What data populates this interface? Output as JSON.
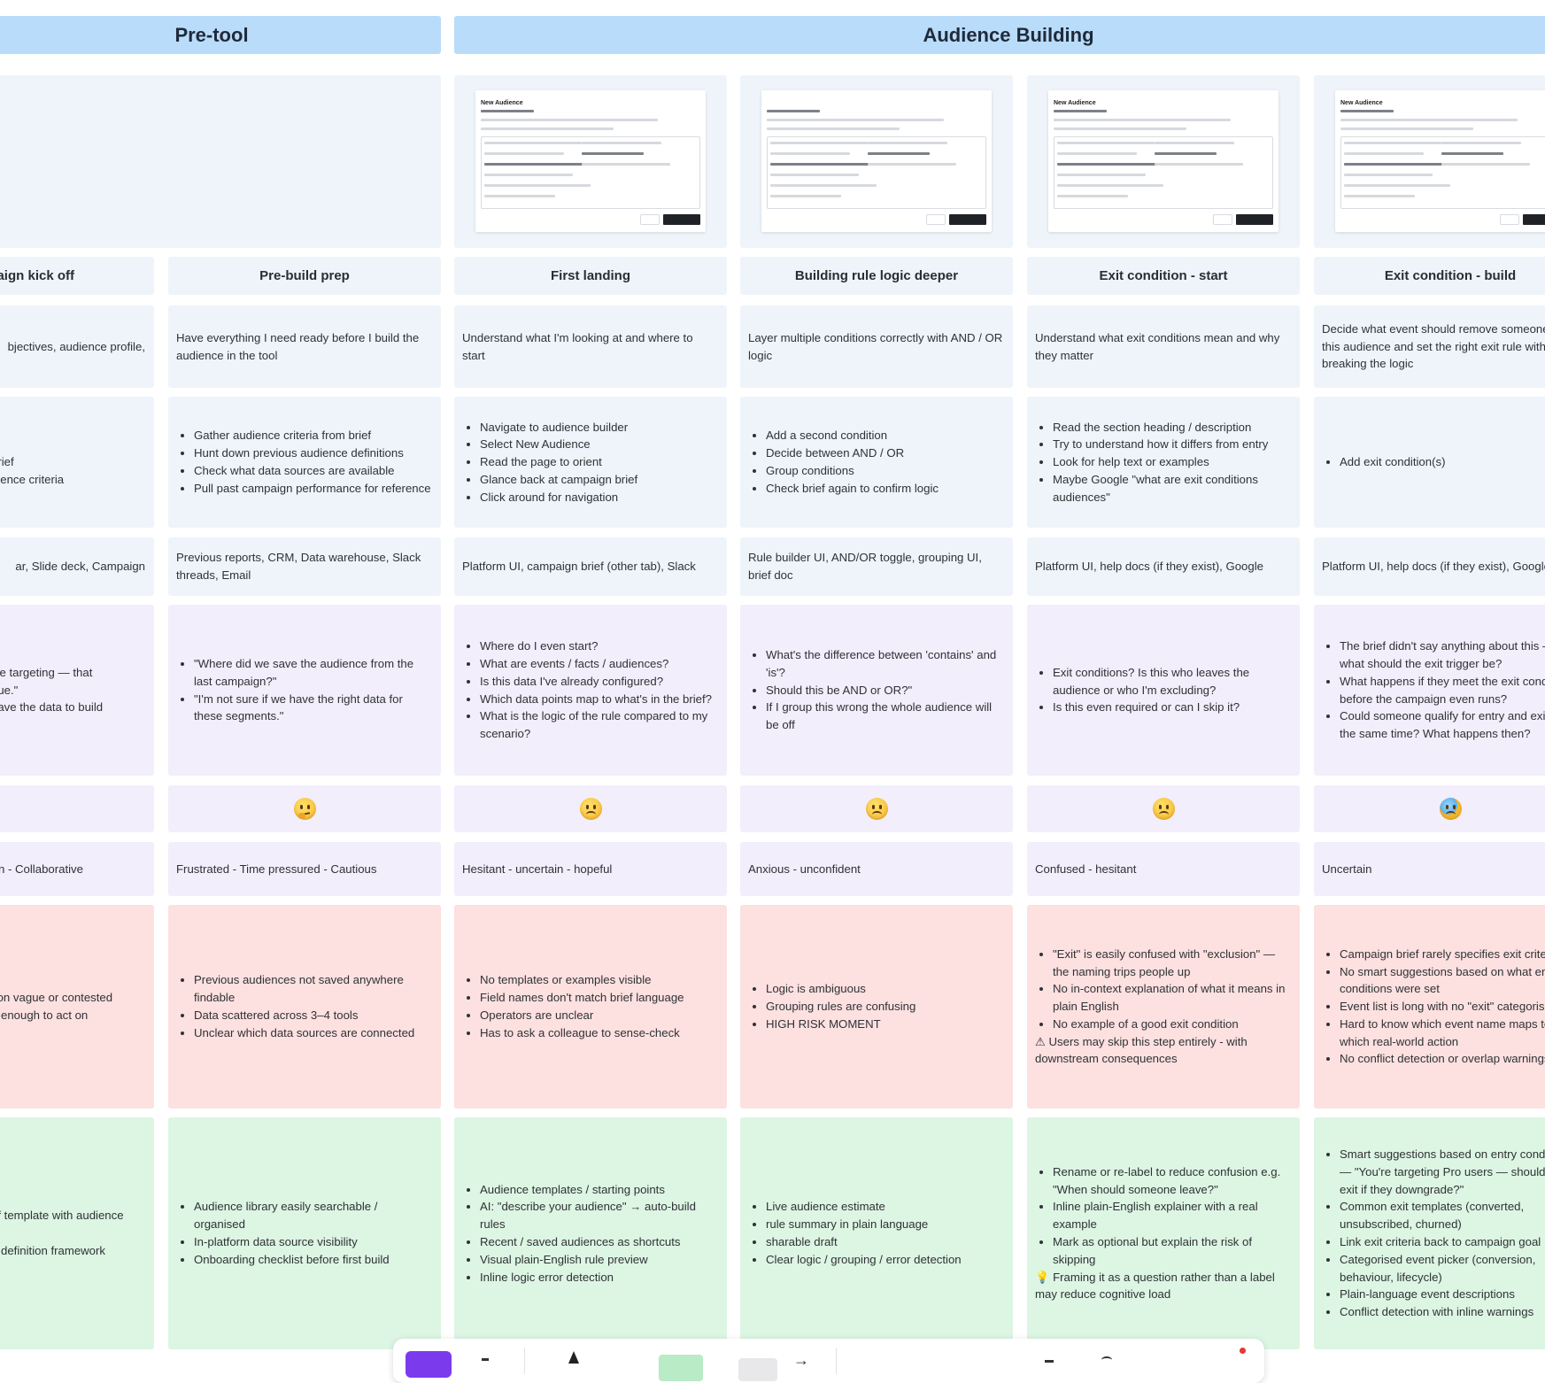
{
  "phases": [
    {
      "label": "Pre-tool"
    },
    {
      "label": "Audience Building"
    }
  ],
  "screenshots": [
    {
      "title": "New Audience"
    },
    {
      "title": ""
    },
    {
      "title": "New Audience"
    },
    {
      "title": "New Audience"
    }
  ],
  "stages": [
    {
      "title": "aign kick off",
      "goal": "bjectives, audience profile,",
      "actions": [
        "ll",
        " brief",
        "dience criteria"
      ],
      "tools": "ar, Slide deck, Campaign",
      "thoughts": [
        " we targeting — that",
        "gue.\"",
        "have the data to build"
      ],
      "emotion_word": "n - Collaborative",
      "pains": [
        "tion vague or contested",
        "d enough to act on"
      ],
      "opportunities": [
        "ef template with audience",
        "",
        "e definition framework"
      ]
    },
    {
      "title": "Pre-build prep",
      "goal": "Have everything I need ready before I build the audience in the tool",
      "actions": [
        "Gather audience criteria from brief",
        "Hunt down previous audience definitions",
        "Check what data sources are available",
        "Pull past campaign performance for reference"
      ],
      "tools": "Previous reports, CRM, Data warehouse, Slack threads, Email",
      "thoughts": [
        "\"Where did we save the audience from the last campaign?\"",
        "\"I'm not sure if we have the right data for these segments.\""
      ],
      "emotion_word": "Frustrated - Time pressured  - Cautious",
      "pains": [
        "Previous audiences not saved anywhere findable",
        "Data scattered across 3–4 tools",
        "Unclear which data sources are connected"
      ],
      "opportunities": [
        "Audience library easily searchable / organised",
        "In-platform data source visibility",
        "Onboarding checklist before first build"
      ]
    },
    {
      "title": "First landing",
      "goal": "Understand what I'm looking at and where to start",
      "actions": [
        "Navigate to audience builder",
        "Select New Audience",
        "Read the page to orient",
        "Glance back at campaign brief",
        "Click around for navigation"
      ],
      "tools": "Platform UI, campaign brief (other tab), Slack",
      "thoughts": [
        "Where do I even start?",
        "What are events / facts / audiences?",
        "Is this data I've already configured?",
        "Which data points map to what's in the brief?",
        "What is the logic of the rule compared to my scenario?"
      ],
      "emotion_word": "Hesitant - uncertain  - hopeful",
      "pains": [
        "No templates or examples visible",
        "Field names don't match brief language",
        "Operators are unclear",
        "Has to ask a colleague to sense-check"
      ],
      "opportunities": [
        "Audience templates / starting points",
        "AI: \"describe your audience\" → auto-build rules",
        "Recent / saved audiences as shortcuts",
        "Visual plain-English rule preview",
        "Inline logic error detection"
      ]
    },
    {
      "title": "Building rule logic deeper",
      "goal": "Layer multiple conditions correctly with AND / OR logic",
      "actions": [
        "Add a second condition",
        "Decide between AND / OR",
        "Group conditions",
        "Check brief again to confirm logic"
      ],
      "tools": "Rule builder UI, AND/OR toggle, grouping UI, brief doc",
      "thoughts": [
        "What's the difference between 'contains' and 'is'?",
        "Should this be AND or OR?\"",
        "If I group this wrong the whole audience will be off"
      ],
      "emotion_word": "Anxious - unconfident",
      "pains": [
        "Logic is ambiguous",
        "Grouping rules are confusing",
        "HIGH RISK MOMENT"
      ],
      "opportunities": [
        "Live audience estimate",
        "rule summary in plain language",
        "sharable draft",
        "Clear logic / grouping / error detection"
      ]
    },
    {
      "title": "Exit condition - start",
      "goal": "Understand what exit conditions mean and why they matter",
      "actions": [
        "Read the section heading / description",
        "Try to understand how it differs from entry",
        "Look for help text or examples",
        "Maybe Google \"what are exit conditions audiences\""
      ],
      "tools": "Platform UI, help docs (if they exist), Google",
      "thoughts": [
        "Exit conditions? Is this who leaves the audience or who I'm excluding?",
        "Is this even required or can I skip it?"
      ],
      "emotion_word": "Confused - hesitant",
      "pains": [
        "\"Exit\" is easily confused with \"exclusion\" — the naming trips people up",
        "No in-context explanation of what it means in plain English",
        "No example of a good exit condition"
      ],
      "pain_note": "⚠ Users may skip this step entirely -  with downstream consequences",
      "opportunities": [
        "Rename or re-label to reduce confusion e.g. \"When should someone leave?\"",
        "Inline plain-English explainer with a real example",
        "Mark as optional but explain the risk of skipping"
      ],
      "opp_note": "💡 Framing it as a question rather than a label may reduce cognitive load"
    },
    {
      "title": "Exit condition - build",
      "goal": "Decide what event should remove someone from this audience and set the right exit rule without breaking the logic",
      "actions": [
        "Add exit condition(s)"
      ],
      "tools": "Platform UI, help docs (if they exist), Google",
      "thoughts": [
        "The brief didn't say anything about this — what should the exit trigger be?",
        "What happens if they meet the exit condition before the campaign even runs?",
        "Could someone qualify for entry and exit at the same time? What happens then?"
      ],
      "emotion_word": "Uncertain",
      "pains": [
        "Campaign brief rarely specifies exit criteria",
        "No smart suggestions based on what entry conditions were set",
        "Event list is long with no \"exit\" categorisation",
        "Hard to know which event name maps to which real-world action",
        "No conflict detection or overlap warnings"
      ],
      "opportunities": [
        "Smart suggestions based on entry conditions — \"You're targeting Pro users — should they exit if they downgrade?\"",
        "Common exit templates (converted, unsubscribed, churned)",
        "Link exit criteria back to campaign goal",
        "Categorised event picker (conversion, behaviour, lifecycle)",
        "Plain-language event descriptions",
        "Conflict detection with inline warnings"
      ]
    }
  ],
  "toolbar": {
    "items": [
      "frame-tool",
      "pen-tool",
      "sticky-tool",
      "shape-tool",
      "arrow-tool",
      "text-tool",
      "stamp-tool",
      "more-tool"
    ]
  },
  "colors": {
    "phase": "#b9dcfb",
    "header": "#eef4f9",
    "thoughts": "#f2eefb",
    "pains": "#fde0e0",
    "opportunities": "#ddf5e3",
    "toolbar_accent": "#7c3aed"
  }
}
